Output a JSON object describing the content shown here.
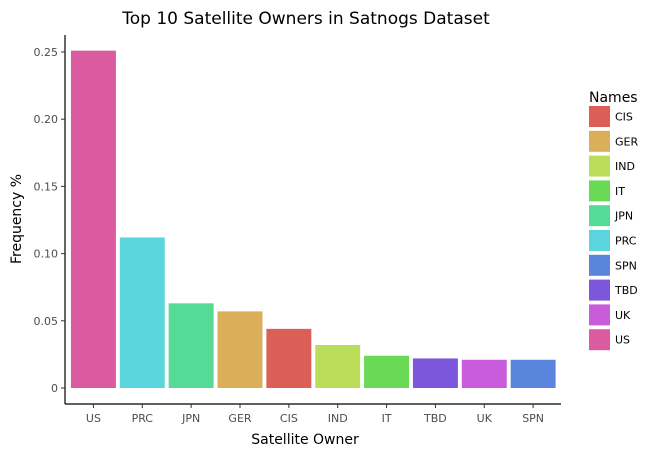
{
  "chart_data": {
    "type": "bar",
    "title": "Top 10 Satellite Owners in Satnogs Dataset",
    "xlabel": "Satellite Owner",
    "ylabel": "Frequency %",
    "categories": [
      "US",
      "PRC",
      "JPN",
      "GER",
      "CIS",
      "IND",
      "IT",
      "TBD",
      "UK",
      "SPN"
    ],
    "values": [
      0.251,
      0.112,
      0.063,
      0.057,
      0.044,
      0.032,
      0.024,
      0.022,
      0.021,
      0.021
    ],
    "colors": {
      "US": "#db5ba0",
      "PRC": "#5ad5dd",
      "JPN": "#55db95",
      "GER": "#dbae5a",
      "CIS": "#db5f56",
      "IND": "#bade5a",
      "IT": "#69da56",
      "TBD": "#7c56db",
      "UK": "#c85cdb",
      "SPN": "#5986dc"
    },
    "ylim": [
      0,
      0.263
    ],
    "yticks": [
      0,
      0.05,
      0.1,
      0.15,
      0.2,
      0.25
    ],
    "ytick_labels": [
      "0",
      "0.05",
      "0.10",
      "0.15",
      "0.20",
      "0.25"
    ],
    "grid": false,
    "legend": {
      "title": "Names",
      "placement": "right",
      "entries": [
        "CIS",
        "GER",
        "IND",
        "IT",
        "JPN",
        "PRC",
        "SPN",
        "TBD",
        "UK",
        "US"
      ]
    }
  }
}
